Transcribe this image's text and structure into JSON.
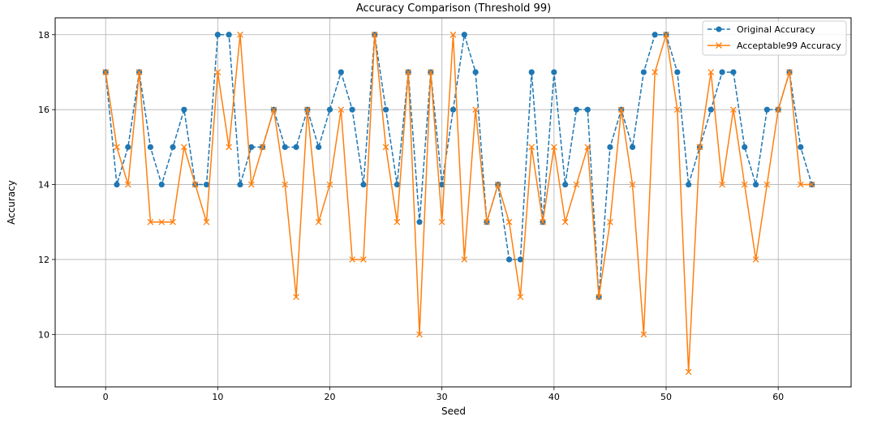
{
  "chart_data": {
    "type": "line",
    "title": "Accuracy Comparison (Threshold 99)",
    "xlabel": "Seed",
    "ylabel": "Accuracy",
    "xlim": [
      -4.5,
      66.5
    ],
    "ylim": [
      8.6,
      18.45
    ],
    "xticks": [
      0,
      10,
      20,
      30,
      40,
      50,
      60
    ],
    "yticks": [
      10,
      12,
      14,
      16,
      18
    ],
    "grid": true,
    "legend_position": "top-right",
    "x": [
      0,
      1,
      2,
      3,
      4,
      5,
      6,
      7,
      8,
      9,
      10,
      11,
      12,
      13,
      14,
      15,
      16,
      17,
      18,
      19,
      20,
      21,
      22,
      23,
      24,
      25,
      26,
      27,
      28,
      29,
      30,
      31,
      32,
      33,
      34,
      35,
      36,
      37,
      38,
      39,
      40,
      41,
      42,
      43,
      44,
      45,
      46,
      47,
      48,
      49,
      50,
      51,
      52,
      53,
      54,
      55,
      56,
      57,
      58,
      59,
      60,
      61,
      62,
      63
    ],
    "series": [
      {
        "name": "Original Accuracy",
        "color": "#1f77b4",
        "line_style": "dashed",
        "marker": "circle",
        "values": [
          17,
          14,
          15,
          17,
          15,
          14,
          15,
          16,
          14,
          14,
          18,
          18,
          14,
          15,
          15,
          16,
          15,
          15,
          16,
          15,
          16,
          17,
          16,
          14,
          18,
          16,
          14,
          17,
          13,
          17,
          14,
          16,
          18,
          17,
          13,
          14,
          12,
          12,
          17,
          13,
          17,
          14,
          16,
          16,
          11,
          15,
          16,
          15,
          17,
          18,
          18,
          17,
          14,
          15,
          16,
          17,
          17,
          15,
          14,
          16,
          16,
          17,
          15,
          14
        ]
      },
      {
        "name": "Acceptable99 Accuracy",
        "color": "#ff7f0e",
        "line_style": "solid",
        "marker": "x",
        "values": [
          17,
          15,
          14,
          17,
          13,
          13,
          13,
          15,
          14,
          13,
          17,
          15,
          18,
          14,
          15,
          16,
          14,
          11,
          16,
          13,
          14,
          16,
          12,
          12,
          18,
          15,
          13,
          17,
          10,
          17,
          13,
          18,
          12,
          16,
          13,
          14,
          13,
          11,
          15,
          13,
          15,
          13,
          14,
          15,
          11,
          13,
          16,
          14,
          10,
          17,
          18,
          16,
          9,
          15,
          17,
          14,
          16,
          14,
          12,
          14,
          16,
          17,
          14,
          14
        ]
      }
    ]
  }
}
